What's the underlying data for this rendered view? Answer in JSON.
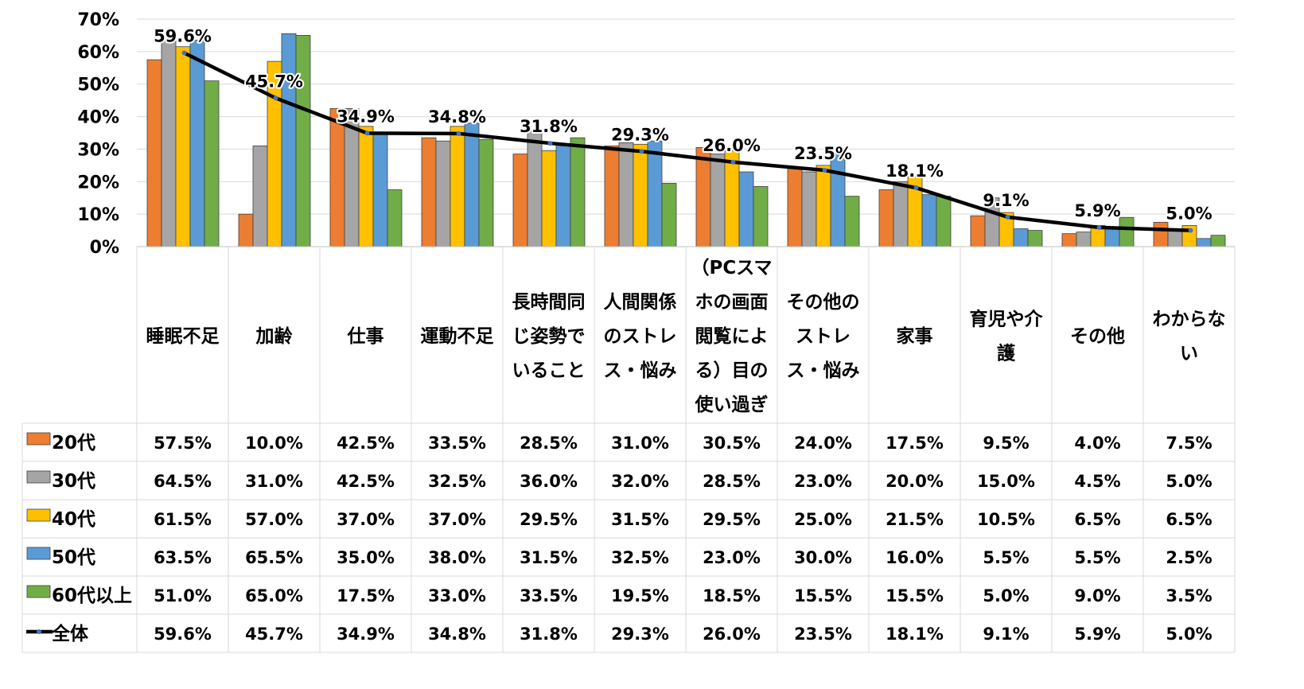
{
  "chart_data": {
    "type": "bar",
    "title": "",
    "xlabel": "",
    "ylabel": "",
    "ylim": [
      0,
      70
    ],
    "yticks": [
      "0%",
      "10%",
      "20%",
      "30%",
      "40%",
      "50%",
      "60%",
      "70%"
    ],
    "grid": true,
    "legend": "data-table-left",
    "categories": [
      "睡眠不足",
      "加齢",
      "仕事",
      "運動不足",
      "長時間同じ姿勢でいること",
      "人間関係のストレス・悩み",
      "（PCスマホの画面閲覧による）目の使い過ぎ",
      "その他のストレス・悩み",
      "家事",
      "育児や介護",
      "その他",
      "わからない"
    ],
    "category_lines": [
      [
        "睡眠不足"
      ],
      [
        "加齢"
      ],
      [
        "仕事"
      ],
      [
        "運動不足"
      ],
      [
        "長時間同",
        "じ姿勢で",
        "いること"
      ],
      [
        "人間関係",
        "のストレ",
        "ス・悩み"
      ],
      [
        "（PCスマ",
        "ホの画面",
        "閲覧によ",
        "る）目の",
        "使い過ぎ"
      ],
      [
        "その他の",
        "ストレ",
        "ス・悩み"
      ],
      [
        "家事"
      ],
      [
        "育児や介",
        "護"
      ],
      [
        "その他"
      ],
      [
        "わからな",
        "い"
      ]
    ],
    "series": [
      {
        "name": "20代",
        "type": "bar",
        "color": "#ED7D31",
        "values": [
          57.5,
          10.0,
          42.5,
          33.5,
          28.5,
          31.0,
          30.5,
          24.0,
          17.5,
          9.5,
          4.0,
          7.5
        ],
        "labels": [
          "57.5%",
          "10.0%",
          "42.5%",
          "33.5%",
          "28.5%",
          "31.0%",
          "30.5%",
          "24.0%",
          "17.5%",
          "9.5%",
          "4.0%",
          "7.5%"
        ]
      },
      {
        "name": "30代",
        "type": "bar",
        "color": "#A5A5A5",
        "values": [
          64.5,
          31.0,
          42.5,
          32.5,
          36.0,
          32.0,
          28.5,
          23.0,
          20.0,
          15.0,
          4.5,
          5.0
        ],
        "labels": [
          "64.5%",
          "31.0%",
          "42.5%",
          "32.5%",
          "36.0%",
          "32.0%",
          "28.5%",
          "23.0%",
          "20.0%",
          "15.0%",
          "4.5%",
          "5.0%"
        ]
      },
      {
        "name": "40代",
        "type": "bar",
        "color": "#FFC000",
        "values": [
          61.5,
          57.0,
          37.0,
          37.0,
          29.5,
          31.5,
          29.5,
          25.0,
          21.5,
          10.5,
          6.5,
          6.5
        ],
        "labels": [
          "61.5%",
          "57.0%",
          "37.0%",
          "37.0%",
          "29.5%",
          "31.5%",
          "29.5%",
          "25.0%",
          "21.5%",
          "10.5%",
          "6.5%",
          "6.5%"
        ]
      },
      {
        "name": "50代",
        "type": "bar",
        "color": "#5B9BD5",
        "values": [
          63.5,
          65.5,
          35.0,
          38.0,
          31.5,
          32.5,
          23.0,
          30.0,
          16.0,
          5.5,
          5.5,
          2.5
        ],
        "labels": [
          "63.5%",
          "65.5%",
          "35.0%",
          "38.0%",
          "31.5%",
          "32.5%",
          "23.0%",
          "30.0%",
          "16.0%",
          "5.5%",
          "5.5%",
          "2.5%"
        ]
      },
      {
        "name": "60代以上",
        "type": "bar",
        "color": "#70AD47",
        "values": [
          51.0,
          65.0,
          17.5,
          33.0,
          33.5,
          19.5,
          18.5,
          15.5,
          15.5,
          5.0,
          9.0,
          3.5
        ],
        "labels": [
          "51.0%",
          "65.0%",
          "17.5%",
          "33.0%",
          "33.5%",
          "19.5%",
          "18.5%",
          "15.5%",
          "15.5%",
          "5.0%",
          "9.0%",
          "3.5%"
        ]
      },
      {
        "name": "全体",
        "type": "line",
        "color": "#000000",
        "marker_color": "#4472C4",
        "values": [
          59.6,
          45.7,
          34.9,
          34.8,
          31.8,
          29.3,
          26.0,
          23.5,
          18.1,
          9.1,
          5.9,
          5.0
        ],
        "labels": [
          "59.6%",
          "45.7%",
          "34.9%",
          "34.8%",
          "31.8%",
          "29.3%",
          "26.0%",
          "23.5%",
          "18.1%",
          "9.1%",
          "5.9%",
          "5.0%"
        ]
      }
    ]
  }
}
